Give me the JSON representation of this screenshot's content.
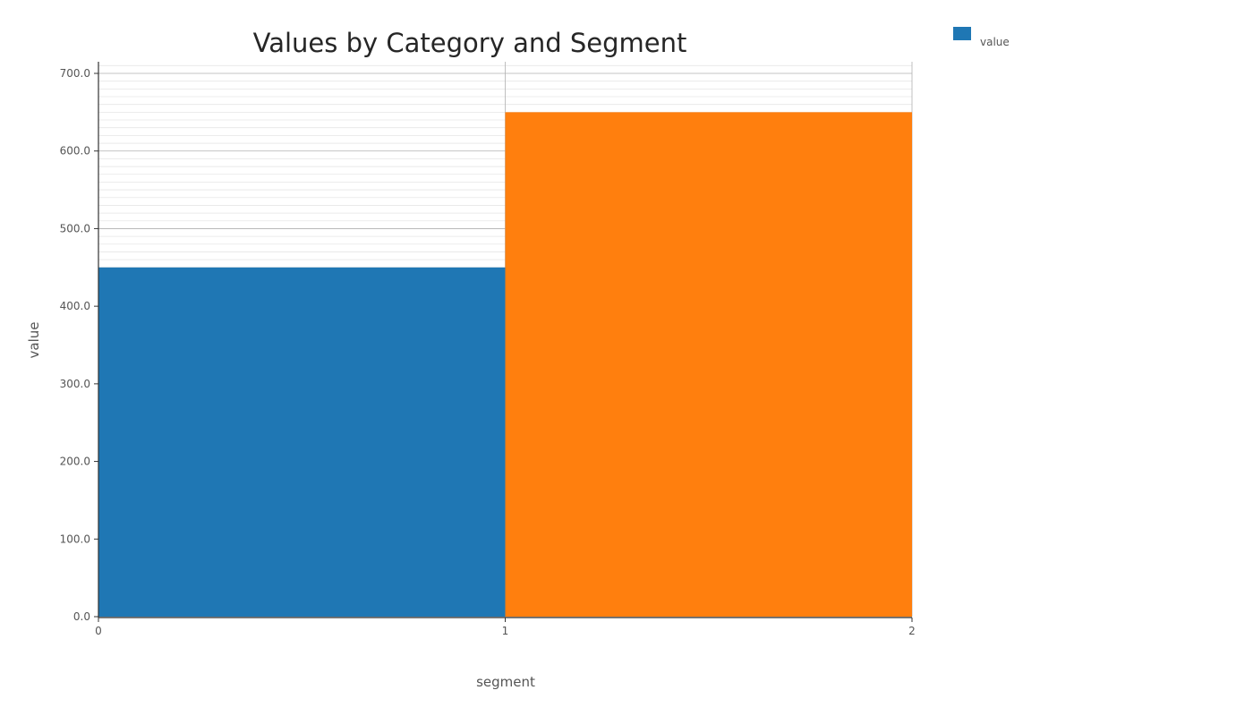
{
  "chart_data": {
    "type": "bar",
    "title": "Values by Category and Segment",
    "xlabel": "segment",
    "ylabel": "value",
    "x_edges": [
      0,
      1,
      2
    ],
    "x_tick_labels": [
      "0",
      "1",
      "2"
    ],
    "xlim": [
      0,
      2
    ],
    "ylim": [
      0,
      715
    ],
    "y_ticks": [
      0,
      100,
      200,
      300,
      400,
      500,
      600,
      700
    ],
    "y_tick_labels": [
      "0.0",
      "100.0",
      "200.0",
      "300.0",
      "400.0",
      "500.0",
      "600.0",
      "700.0"
    ],
    "y_minor_step": 10,
    "grid": true,
    "bars": [
      {
        "x0": 0,
        "x1": 1,
        "value": 450,
        "color": "#1f77b4"
      },
      {
        "x0": 1,
        "x1": 2,
        "value": 650,
        "color": "#ff7f0e"
      }
    ],
    "legend": {
      "position": "top-right",
      "entries": [
        {
          "label": "value",
          "color": "#1f77b4"
        }
      ]
    }
  }
}
